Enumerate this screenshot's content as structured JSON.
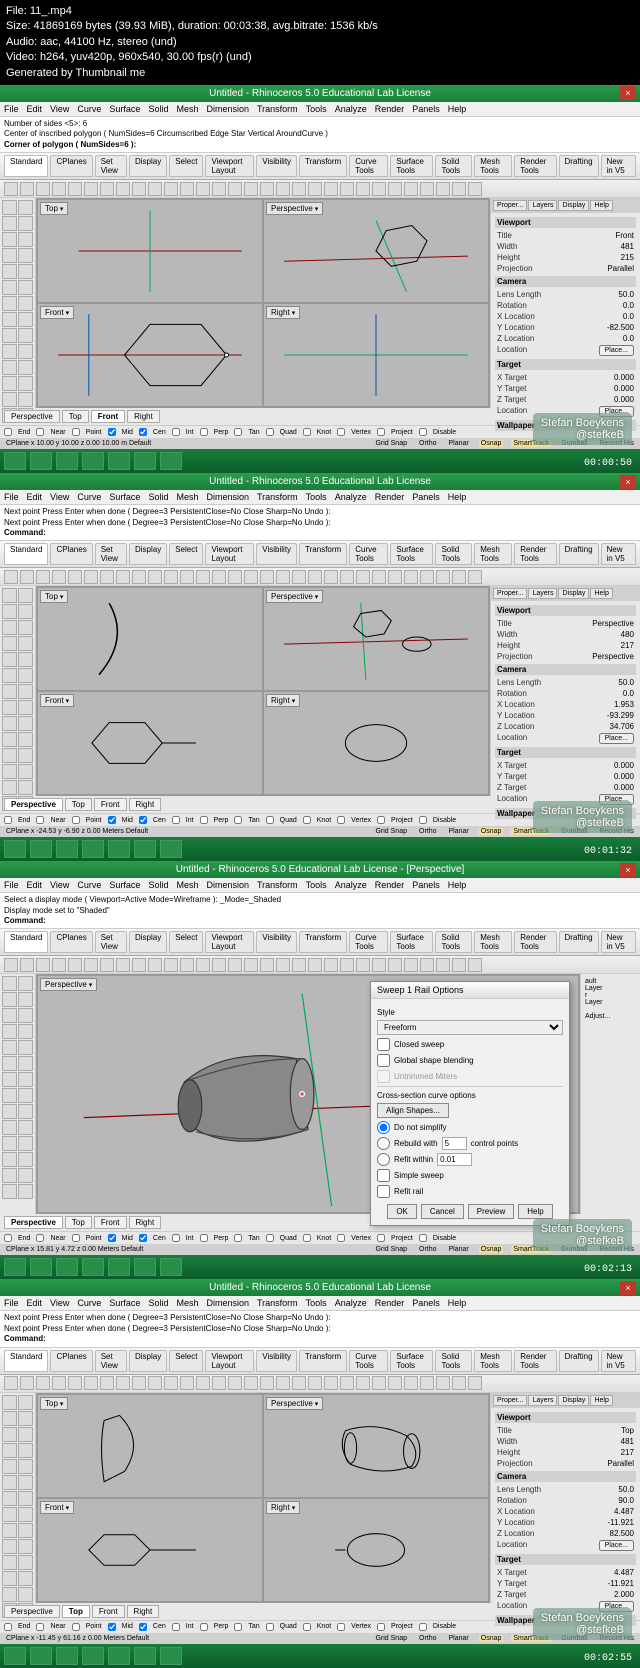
{
  "header": {
    "file": "File: 11_.mp4",
    "size": "Size: 41869169 bytes (39.93 MiB), duration: 00:03:38, avg.bitrate: 1536 kb/s",
    "audio": "Audio: aac, 44100 Hz, stereo (und)",
    "video": "Video: h264, yuv420p, 960x540, 30.00 fps(r) (und)",
    "gen": "Generated by Thumbnail me"
  },
  "common": {
    "title": "Untitled - Rhinoceros 5.0 Educational Lab License",
    "title_persp": "Untitled - Rhinoceros 5.0 Educational Lab License - [Perspective]",
    "menu": [
      "File",
      "Edit",
      "View",
      "Curve",
      "Surface",
      "Solid",
      "Mesh",
      "Dimension",
      "Transform",
      "Tools",
      "Analyze",
      "Render",
      "Panels",
      "Help"
    ],
    "tabs": [
      "Standard",
      "CPlanes",
      "Set View",
      "Display",
      "Select",
      "Viewport Layout",
      "Visibility",
      "Transform",
      "Curve Tools",
      "Surface Tools",
      "Solid Tools",
      "Mesh Tools",
      "Render Tools",
      "Drafting",
      "New in V5"
    ],
    "vptabs": [
      "Perspective",
      "Top",
      "Front",
      "Right"
    ],
    "righttabs": [
      "Proper...",
      "Layers",
      "Display",
      "Help"
    ],
    "osnap": [
      "End",
      "Near",
      "Point",
      "Mid",
      "Cen",
      "Int",
      "Perp",
      "Tan",
      "Quad",
      "Knot",
      "Vertex",
      "Project",
      "Disable"
    ],
    "status2": [
      "Grid Snap",
      "Ortho",
      "Planar",
      "Osnap",
      "SmartTrack",
      "Gumball",
      "Record His"
    ],
    "author": "Stefan Boeykens",
    "handle": "@stefkeB",
    "place_btn": "Place...",
    "viewport_lbl": "Viewport",
    "camera_lbl": "Camera",
    "target_lbl": "Target",
    "wallpaper_lbl": "Wallpaper"
  },
  "shots": [
    {
      "cmd1": "Number of sides <5>: 6",
      "cmd2": "Center of inscribed polygon ( NumSides=6  Circumscribed  Edge  Star  Vertical  AroundCurve )",
      "cmd3": "Corner of polygon ( NumSides=6 ):",
      "timestamp": "00:00:50",
      "props": {
        "Title": "Front",
        "Width": "481",
        "Height": "215",
        "Projection": "Parallel",
        "LensLength": "50.0",
        "Rotation": "0.0",
        "XLocation": "0.0",
        "YLocation": "-82.500",
        "ZLocation": "0.0",
        "XTarget": "0.000",
        "YTarget": "0.000",
        "ZTarget": "0.000"
      },
      "coords": "CPlane    x 10.00    y 10.00    z 0.00    10.00 m    Default",
      "active_vptab": "Front"
    },
    {
      "cmd1": "Next point  Press Enter when done ( Degree=3  PersistentClose=No  Close  Sharp=No  Undo ):",
      "cmd2": "Next point  Press Enter when done ( Degree=3  PersistentClose=No  Close  Sharp=No  Undo ):",
      "cmd3": "Command:",
      "timestamp": "00:01:32",
      "props": {
        "Title": "Perspective",
        "Width": "480",
        "Height": "217",
        "Projection": "Perspective",
        "LensLength": "50.0",
        "Rotation": "0.0",
        "XLocation": "1.953",
        "YLocation": "-93.299",
        "ZLocation": "34.706",
        "XTarget": "0.000",
        "YTarget": "0.000",
        "ZTarget": "0.000"
      },
      "coords": "CPlane    x -24.53    y -6.90    z 0.00    Meters    Default",
      "active_vptab": "Perspective"
    },
    {
      "cmd1": "Select a display mode ( Viewport=Active  Mode=Wireframe ): _Mode=_Shaded",
      "cmd2": "Display mode set to \"Shaded\"",
      "cmd3": "Command:",
      "timestamp": "00:02:13",
      "coords": "CPlane    x 15.81    y 4.72    z 0.00    Meters    Default",
      "active_vptab": "Perspective",
      "dialog": {
        "title": "Sweep 1 Rail Options",
        "style_lbl": "Style",
        "style_val": "Freeform",
        "closed": "Closed sweep",
        "global": "Global shape blending",
        "untrimmed": "Untrimmed Miters",
        "cross_lbl": "Cross-section curve options",
        "align": "Align Shapes...",
        "nosimp": "Do not simplify",
        "rebuild": "Rebuild with",
        "rebuild_v": "5",
        "rebuild_u": "control points",
        "refit": "Refit within",
        "refit_v": "0.01",
        "simple": "Simple sweep",
        "refitrail": "Refit rail",
        "btns": [
          "OK",
          "Cancel",
          "Preview",
          "Help"
        ]
      }
    },
    {
      "cmd1": "Next point  Press Enter when done ( Degree=3  PersistentClose=No  Close  Sharp=No  Undo ):",
      "cmd2": "Next point  Press Enter when done ( Degree=3  PersistentClose=No  Close  Sharp=No  Undo ):",
      "cmd3": "Command:",
      "timestamp": "00:02:55",
      "props": {
        "Title": "Top",
        "Width": "481",
        "Height": "217",
        "Projection": "Parallel",
        "LensLength": "50.0",
        "Rotation": "90.0",
        "XLocation": "4.487",
        "YLocation": "-11.921",
        "ZLocation": "82.500",
        "XTarget": "4.487",
        "YTarget": "-11.921",
        "ZTarget": "2.000"
      },
      "coords": "CPlane    x -11.45    y 61.16    z 0.00    Meters    Default",
      "active_vptab": "Top"
    }
  ]
}
